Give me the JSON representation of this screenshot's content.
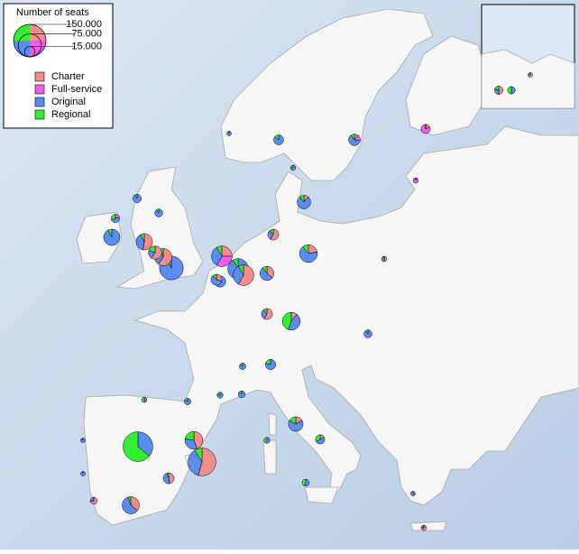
{
  "legend": {
    "title": "Number of seats",
    "size_ticks": [
      {
        "value": 150000,
        "label": "150.000"
      },
      {
        "value": 75000,
        "label": "75.000"
      },
      {
        "value": 15000,
        "label": "15.000"
      }
    ],
    "categories": [
      {
        "name": "Charter",
        "color": "#f48c8c"
      },
      {
        "name": "Full-service",
        "color": "#ee5cee"
      },
      {
        "name": "Original",
        "color": "#5b8cf2"
      },
      {
        "name": "Regional",
        "color": "#33ee33"
      }
    ]
  },
  "airports": [
    [
      0,
      0,
      45000,
      80000
    ],
    [
      60000,
      0,
      40000,
      10000
    ],
    [
      8000,
      0,
      8000,
      1000
    ],
    [
      15000,
      0,
      25000,
      2000
    ],
    [
      5000,
      0,
      2000,
      0
    ],
    [
      0,
      0,
      2000,
      2000
    ],
    [
      0,
      0,
      2500,
      500
    ],
    [
      0,
      0,
      3000,
      0
    ],
    [
      20000,
      0,
      15000,
      10000
    ],
    [
      0,
      0,
      55000,
      5000
    ],
    [
      0,
      0,
      15000,
      3000
    ],
    [
      0,
      0,
      75000,
      5000
    ],
    [
      25000,
      0,
      15000,
      2000
    ],
    [
      20000,
      0,
      15000,
      3000
    ],
    [
      15000,
      0,
      5000,
      5000
    ],
    [
      0,
      0,
      9000,
      1000
    ],
    [
      0,
      0,
      8000,
      1000
    ],
    [
      0,
      0,
      35000,
      3000
    ],
    [
      0,
      2000,
      5000,
      3000
    ],
    [
      15000,
      20000,
      20000,
      5000
    ],
    [
      5000,
      0,
      10000,
      2000
    ],
    [
      35000,
      0,
      20000,
      5000
    ],
    [
      10000,
      0,
      15000,
      3000
    ],
    [
      10000,
      0,
      5000,
      2000
    ],
    [
      10000,
      0,
      30000,
      5000
    ],
    [
      5000,
      0,
      20000,
      20000
    ],
    [
      10000,
      0,
      5000,
      2000
    ],
    [
      3000,
      0,
      20000,
      3000
    ],
    [
      0,
      0,
      12000,
      2000
    ],
    [
      2000,
      3000,
      12000,
      2000
    ],
    [
      2000,
      10000,
      0,
      0
    ],
    [
      0,
      4000,
      0,
      0
    ],
    [
      2000,
      0,
      2000,
      0
    ],
    [
      0,
      0,
      8000,
      1000
    ],
    [
      0,
      0,
      12000,
      3000
    ],
    [
      0,
      0,
      6000,
      1000
    ],
    [
      0,
      0,
      5000,
      1000
    ],
    [
      5000,
      0,
      20000,
      5000
    ],
    [
      2000,
      0,
      6000,
      4000
    ],
    [
      0,
      0,
      4000,
      3000
    ],
    [
      0,
      0,
      3000,
      2000
    ],
    [
      1000,
      0,
      2000,
      0
    ],
    [
      3000,
      0,
      1000,
      0
    ],
    [
      0,
      0,
      4000,
      1000
    ],
    [
      0,
      0,
      5000,
      1000
    ],
    [
      0,
      0,
      3000,
      0
    ],
    [
      0,
      0,
      3000,
      1000
    ],
    [
      5000,
      0,
      3000,
      2000
    ],
    [
      0,
      0,
      4000,
      4000
    ],
    [
      2000,
      0,
      1000,
      0
    ]
  ]
}
